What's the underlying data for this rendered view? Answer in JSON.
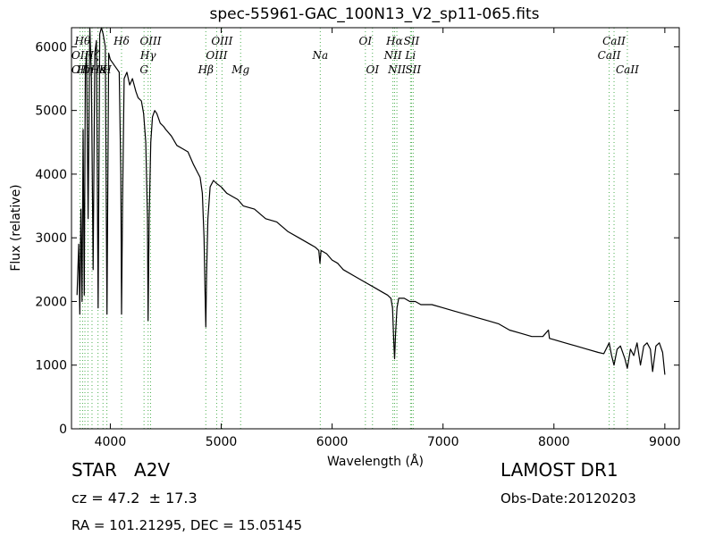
{
  "chart_data": {
    "type": "line",
    "title": "spec-55961-GAC_100N13_V2_sp11-065.fits",
    "xlabel": "Wavelength (Å)",
    "ylabel": "Flux (relative)",
    "xlim": [
      3650,
      9130
    ],
    "ylim": [
      0,
      6300
    ],
    "xticks": [
      4000,
      5000,
      6000,
      7000,
      8000,
      9000
    ],
    "yticks": [
      0,
      1000,
      2000,
      3000,
      4000,
      5000,
      6000
    ],
    "line_color": "#000000",
    "marker_color": "#4caf50",
    "series": [
      {
        "values": [
          [
            3700,
            2100
          ],
          [
            3715,
            2900
          ],
          [
            3725,
            1800
          ],
          [
            3735,
            3450
          ],
          [
            3745,
            2000
          ],
          [
            3755,
            4700
          ],
          [
            3765,
            2100
          ],
          [
            3775,
            5600
          ],
          [
            3785,
            5900
          ],
          [
            3800,
            3300
          ],
          [
            3815,
            6300
          ],
          [
            3830,
            5500
          ],
          [
            3845,
            2500
          ],
          [
            3860,
            5900
          ],
          [
            3875,
            6100
          ],
          [
            3890,
            1900
          ],
          [
            3905,
            6200
          ],
          [
            3920,
            6300
          ],
          [
            3935,
            6200
          ],
          [
            3955,
            6000
          ],
          [
            3970,
            1800
          ],
          [
            3985,
            5900
          ],
          [
            4000,
            5800
          ],
          [
            4020,
            5750
          ],
          [
            4040,
            5700
          ],
          [
            4060,
            5650
          ],
          [
            4080,
            5600
          ],
          [
            4095,
            4000
          ],
          [
            4101,
            1800
          ],
          [
            4110,
            3500
          ],
          [
            4125,
            5500
          ],
          [
            4150,
            5600
          ],
          [
            4175,
            5400
          ],
          [
            4200,
            5500
          ],
          [
            4230,
            5300
          ],
          [
            4250,
            5200
          ],
          [
            4280,
            5150
          ],
          [
            4300,
            4950
          ],
          [
            4320,
            4500
          ],
          [
            4335,
            3300
          ],
          [
            4341,
            1700
          ],
          [
            4350,
            3300
          ],
          [
            4365,
            4500
          ],
          [
            4380,
            4900
          ],
          [
            4400,
            5000
          ],
          [
            4420,
            4950
          ],
          [
            4450,
            4800
          ],
          [
            4480,
            4750
          ],
          [
            4500,
            4700
          ],
          [
            4550,
            4600
          ],
          [
            4600,
            4450
          ],
          [
            4650,
            4400
          ],
          [
            4700,
            4350
          ],
          [
            4750,
            4150
          ],
          [
            4780,
            4050
          ],
          [
            4810,
            3950
          ],
          [
            4830,
            3700
          ],
          [
            4845,
            3000
          ],
          [
            4855,
            2100
          ],
          [
            4861,
            1600
          ],
          [
            4868,
            2400
          ],
          [
            4880,
            3300
          ],
          [
            4900,
            3800
          ],
          [
            4930,
            3900
          ],
          [
            4960,
            3850
          ],
          [
            5000,
            3800
          ],
          [
            5050,
            3700
          ],
          [
            5100,
            3650
          ],
          [
            5150,
            3600
          ],
          [
            5200,
            3500
          ],
          [
            5300,
            3450
          ],
          [
            5400,
            3300
          ],
          [
            5500,
            3250
          ],
          [
            5600,
            3100
          ],
          [
            5700,
            3000
          ],
          [
            5800,
            2900
          ],
          [
            5850,
            2850
          ],
          [
            5880,
            2800
          ],
          [
            5890,
            2600
          ],
          [
            5900,
            2800
          ],
          [
            5950,
            2750
          ],
          [
            6000,
            2650
          ],
          [
            6050,
            2600
          ],
          [
            6100,
            2500
          ],
          [
            6200,
            2400
          ],
          [
            6300,
            2300
          ],
          [
            6400,
            2200
          ],
          [
            6450,
            2150
          ],
          [
            6500,
            2100
          ],
          [
            6530,
            2050
          ],
          [
            6545,
            1900
          ],
          [
            6555,
            1400
          ],
          [
            6563,
            1100
          ],
          [
            6572,
            1500
          ],
          [
            6585,
            1900
          ],
          [
            6600,
            2050
          ],
          [
            6650,
            2050
          ],
          [
            6700,
            2000
          ],
          [
            6750,
            2000
          ],
          [
            6800,
            1950
          ],
          [
            6900,
            1950
          ],
          [
            7000,
            1900
          ],
          [
            7100,
            1850
          ],
          [
            7200,
            1800
          ],
          [
            7300,
            1750
          ],
          [
            7400,
            1700
          ],
          [
            7500,
            1650
          ],
          [
            7600,
            1550
          ],
          [
            7700,
            1500
          ],
          [
            7800,
            1450
          ],
          [
            7900,
            1450
          ],
          [
            7950,
            1550
          ],
          [
            7960,
            1420
          ],
          [
            8000,
            1400
          ],
          [
            8100,
            1350
          ],
          [
            8200,
            1300
          ],
          [
            8300,
            1250
          ],
          [
            8400,
            1200
          ],
          [
            8450,
            1180
          ],
          [
            8498,
            1350
          ],
          [
            8520,
            1150
          ],
          [
            8542,
            1000
          ],
          [
            8570,
            1250
          ],
          [
            8600,
            1300
          ],
          [
            8640,
            1100
          ],
          [
            8662,
            950
          ],
          [
            8690,
            1250
          ],
          [
            8720,
            1150
          ],
          [
            8750,
            1350
          ],
          [
            8780,
            1000
          ],
          [
            8810,
            1300
          ],
          [
            8840,
            1350
          ],
          [
            8870,
            1250
          ],
          [
            8890,
            900
          ],
          [
            8920,
            1300
          ],
          [
            8950,
            1350
          ],
          [
            8980,
            1200
          ],
          [
            9000,
            850
          ]
        ]
      }
    ],
    "lines": [
      {
        "x": 3727,
        "labels": [
          {
            "text": "OII",
            "row": 2
          },
          {
            "text": "OII",
            "row": 3
          }
        ]
      },
      {
        "x": 3750,
        "labels": [
          {
            "text": "Hθ",
            "row": 1
          }
        ]
      },
      {
        "x": 3771,
        "labels": [
          {
            "text": "Hη",
            "row": 3
          }
        ]
      },
      {
        "x": 3798,
        "labels": []
      },
      {
        "x": 3835,
        "labels": [
          {
            "text": "Hζ",
            "row": 2
          }
        ]
      },
      {
        "x": 3889,
        "labels": [
          {
            "text": "Hε",
            "row": 3
          }
        ]
      },
      {
        "x": 3934,
        "labels": [
          {
            "text": "K",
            "row": 3
          }
        ]
      },
      {
        "x": 3969,
        "labels": [
          {
            "text": "H",
            "row": 3
          }
        ]
      },
      {
        "x": 4101,
        "labels": [
          {
            "text": "Hδ",
            "row": 1
          }
        ]
      },
      {
        "x": 4304,
        "labels": [
          {
            "text": "G",
            "row": 3
          }
        ]
      },
      {
        "x": 4341,
        "labels": [
          {
            "text": "Hγ",
            "row": 2
          }
        ]
      },
      {
        "x": 4363,
        "labels": [
          {
            "text": "OIII",
            "row": 1
          }
        ]
      },
      {
        "x": 4861,
        "labels": [
          {
            "text": "Hβ",
            "row": 3
          }
        ]
      },
      {
        "x": 4959,
        "labels": [
          {
            "text": "OIII",
            "row": 2
          }
        ]
      },
      {
        "x": 5007,
        "labels": [
          {
            "text": "OIII",
            "row": 1
          }
        ]
      },
      {
        "x": 5175,
        "labels": [
          {
            "text": "Mg",
            "row": 3
          }
        ]
      },
      {
        "x": 5893,
        "labels": [
          {
            "text": "Na",
            "row": 2
          }
        ]
      },
      {
        "x": 6300,
        "labels": [
          {
            "text": "OI",
            "row": 1
          }
        ]
      },
      {
        "x": 6364,
        "labels": [
          {
            "text": "OI",
            "row": 3
          }
        ]
      },
      {
        "x": 6548,
        "labels": [
          {
            "text": "NII",
            "row": 2
          }
        ]
      },
      {
        "x": 6563,
        "labels": [
          {
            "text": "Hα",
            "row": 1
          }
        ]
      },
      {
        "x": 6584,
        "labels": [
          {
            "text": "NII",
            "row": 3
          }
        ]
      },
      {
        "x": 6707,
        "labels": [
          {
            "text": "Li",
            "row": 2
          }
        ]
      },
      {
        "x": 6716,
        "labels": [
          {
            "text": "SII",
            "row": 1
          }
        ]
      },
      {
        "x": 6731,
        "labels": [
          {
            "text": "SII",
            "row": 3
          }
        ]
      },
      {
        "x": 8498,
        "labels": [
          {
            "text": "CaII",
            "row": 2
          }
        ]
      },
      {
        "x": 8542,
        "labels": [
          {
            "text": "CaII",
            "row": 1
          }
        ]
      },
      {
        "x": 8662,
        "labels": [
          {
            "text": "CaII",
            "row": 3
          }
        ]
      }
    ]
  },
  "object": {
    "class_label": "STAR   A2V",
    "survey": "LAMOST DR1",
    "cz": "cz = 47.2  ± 17.3",
    "obs_date": "Obs-Date:20120203",
    "radec": "RA = 101.21295, DEC = 15.05145"
  }
}
